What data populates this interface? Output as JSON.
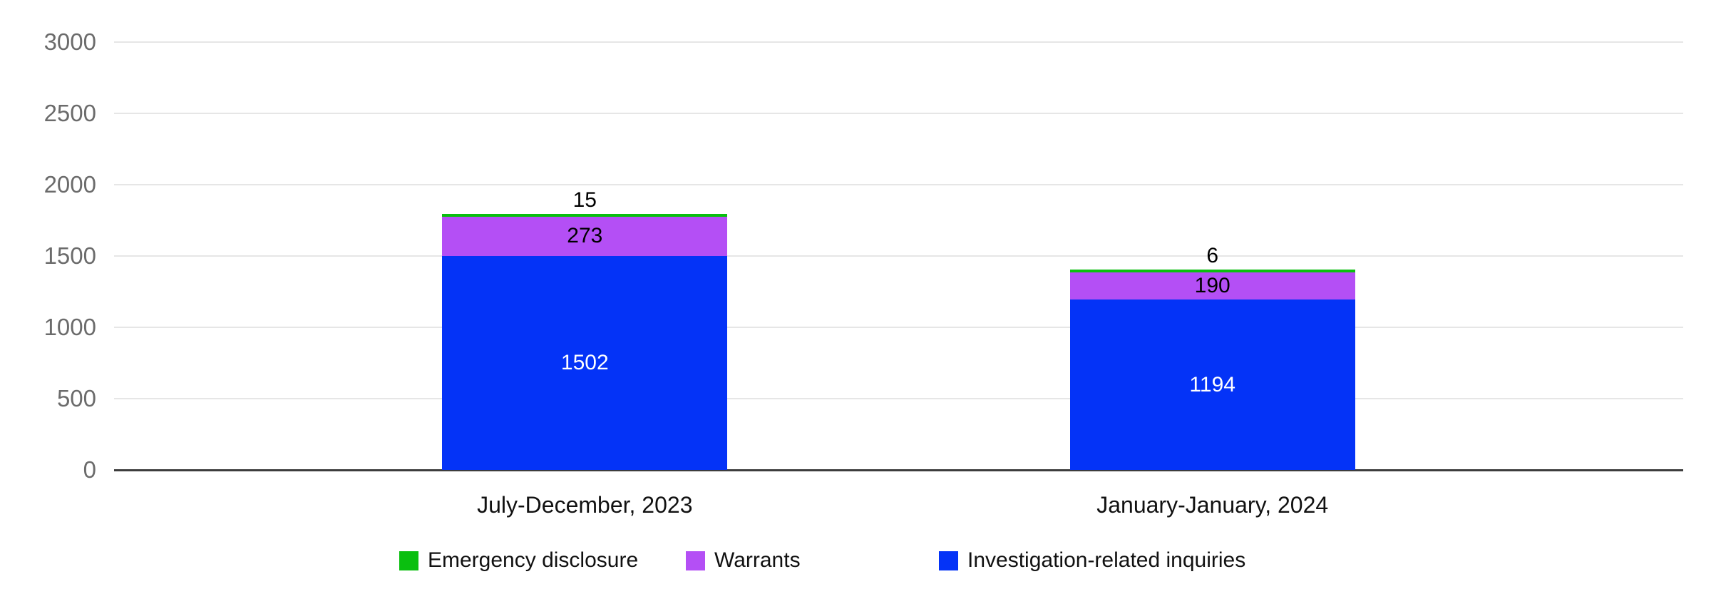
{
  "chart_data": {
    "type": "bar",
    "stacked": true,
    "title": "",
    "xlabel": "",
    "ylabel": "",
    "categories": [
      "July-December, 2023",
      "January-January, 2024"
    ],
    "series": [
      {
        "name": "Emergency disclosure",
        "color": "#0abf0f",
        "values": [
          15,
          6
        ],
        "label_color": "#000000",
        "label_position": "above"
      },
      {
        "name": "Warrants",
        "color": "#b44ff5",
        "values": [
          273,
          190
        ],
        "label_color": "#000000",
        "label_position": "center"
      },
      {
        "name": "Investigation-related inquiries",
        "color": "#0433f7",
        "values": [
          1502,
          1194
        ],
        "label_color": "#ffffff",
        "label_position": "center"
      }
    ],
    "stack_order_bottom_to_top": [
      "Investigation-related inquiries",
      "Warrants",
      "Emergency disclosure"
    ],
    "totals": [
      1790,
      1390
    ],
    "y_axis": {
      "min": 0,
      "max": 3000,
      "step": 500,
      "ticks": [
        "0",
        "500",
        "1000",
        "1500",
        "2000",
        "2500",
        "3000"
      ]
    },
    "grid": true,
    "legend_position": "bottom",
    "legend_entries": [
      "Emergency disclosure",
      "Warrants",
      "Investigation-related inquiries"
    ],
    "colors": {
      "background": "#ffffff",
      "gridline": "#e6e6e6",
      "axis_line": "#3d3d3d",
      "tick_label": "#6b6b6b",
      "category_label": "#111111",
      "legend_label": "#111111"
    }
  }
}
